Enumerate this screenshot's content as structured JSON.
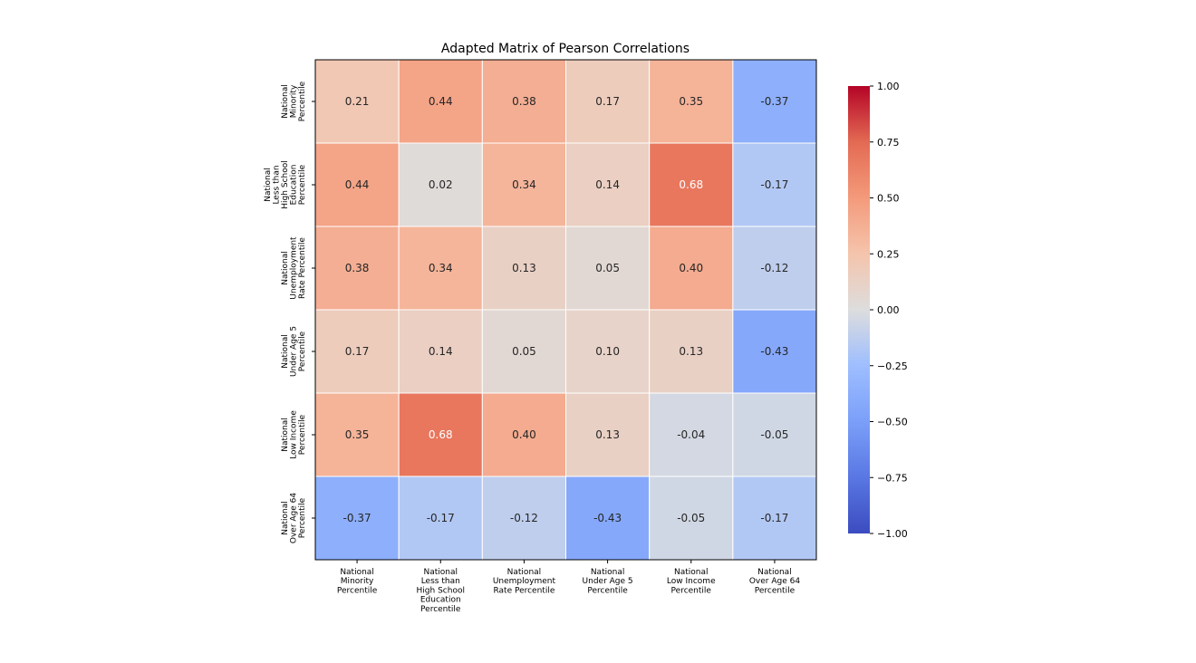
{
  "chart_data": {
    "type": "heatmap",
    "title": "Adapted Matrix of Pearson Correlations",
    "row_labels": [
      [
        "National",
        "Minority",
        "Percentile"
      ],
      [
        "National",
        "Less than",
        "High School",
        "Education",
        "Percentile"
      ],
      [
        "National",
        "Unemployment",
        "Rate Percentile"
      ],
      [
        "National",
        "Under Age 5",
        "Percentile"
      ],
      [
        "National",
        "Low Income",
        "Percentile"
      ],
      [
        "National",
        "Over Age 64",
        "Percentile"
      ]
    ],
    "col_labels": [
      [
        "National",
        "Minority",
        "Percentile"
      ],
      [
        "National",
        "Less than",
        "High School",
        "Education",
        "Percentile"
      ],
      [
        "National",
        "Unemployment",
        "Rate Percentile"
      ],
      [
        "National",
        "Under Age 5",
        "Percentile"
      ],
      [
        "National",
        "Low Income",
        "Percentile"
      ],
      [
        "National",
        "Over Age 64",
        "Percentile"
      ]
    ],
    "values": [
      [
        0.21,
        0.44,
        0.38,
        0.17,
        0.35,
        -0.37
      ],
      [
        0.44,
        0.02,
        0.34,
        0.14,
        0.68,
        -0.17
      ],
      [
        0.38,
        0.34,
        0.13,
        0.05,
        0.4,
        -0.12
      ],
      [
        0.17,
        0.14,
        0.05,
        0.1,
        0.13,
        -0.43
      ],
      [
        0.35,
        0.68,
        0.4,
        0.13,
        -0.04,
        -0.05
      ],
      [
        -0.37,
        -0.17,
        -0.12,
        -0.43,
        -0.05,
        -0.17
      ]
    ],
    "cell_labels": [
      [
        "0.21",
        "0.44",
        "0.38",
        "0.17",
        "0.35",
        "-0.37"
      ],
      [
        "0.44",
        "0.02",
        "0.34",
        "0.14",
        "0.68",
        "-0.17"
      ],
      [
        "0.38",
        "0.34",
        "0.13",
        "0.05",
        "0.40",
        "-0.12"
      ],
      [
        "0.17",
        "0.14",
        "0.05",
        "0.10",
        "0.13",
        "-0.43"
      ],
      [
        "0.35",
        "0.68",
        "0.40",
        "0.13",
        "-0.04",
        "-0.05"
      ],
      [
        "-0.37",
        "-0.17",
        "-0.12",
        "-0.43",
        "-0.05",
        "-0.17"
      ]
    ],
    "colormap": "coolwarm",
    "vmin": -1.0,
    "vmax": 1.0,
    "colorbar_ticks": [
      1.0,
      0.75,
      0.5,
      0.25,
      0.0,
      -0.25,
      -0.5,
      -0.75,
      -1.0
    ],
    "colorbar_tick_labels": [
      "1.00",
      "0.75",
      "0.50",
      "0.25",
      "0.00",
      "−0.25",
      "−0.50",
      "−0.75",
      "−1.00"
    ],
    "colors": {
      "cold": "#3b4cc0",
      "neutral": "#dddddd",
      "hot": "#b40426",
      "grid": "#ffffff"
    }
  }
}
